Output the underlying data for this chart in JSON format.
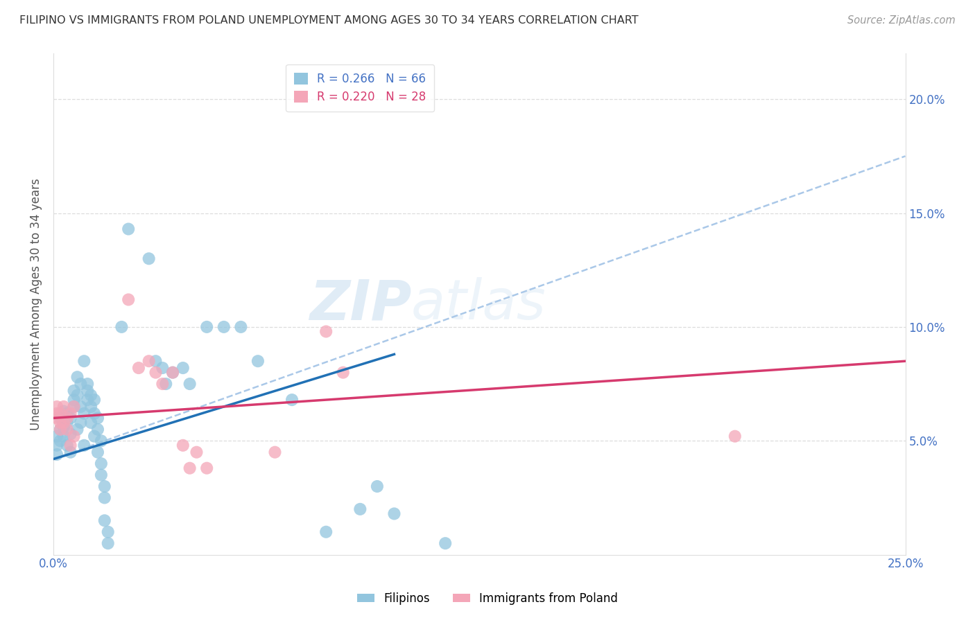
{
  "title": "FILIPINO VS IMMIGRANTS FROM POLAND UNEMPLOYMENT AMONG AGES 30 TO 34 YEARS CORRELATION CHART",
  "source": "Source: ZipAtlas.com",
  "ylabel": "Unemployment Among Ages 30 to 34 years",
  "xlim": [
    0.0,
    0.25
  ],
  "ylim": [
    0.0,
    0.22
  ],
  "yticks": [
    0.05,
    0.1,
    0.15,
    0.2
  ],
  "yticklabels": [
    "5.0%",
    "10.0%",
    "15.0%",
    "20.0%"
  ],
  "xtick_vals": [
    0.0,
    0.05,
    0.1,
    0.15,
    0.2,
    0.25
  ],
  "xticklabels": [
    "0.0%",
    "",
    "",
    "",
    "",
    "25.0%"
  ],
  "filipino_color": "#92c5de",
  "poland_color": "#f4a6b8",
  "trendline_filipino_color": "#2171b5",
  "trendline_poland_color": "#d63a6e",
  "trendline_dashed_color": "#aac8e8",
  "watermark": "ZIPatlas",
  "tick_color": "#4472c4",
  "title_color": "#333333",
  "ylabel_color": "#555555",
  "grid_color": "#dddddd",
  "legend_box_color": "#dddddd",
  "source_color": "#999999",
  "filipino_R": "0.266",
  "filipino_N": "66",
  "poland_R": "0.220",
  "poland_N": "28",
  "trendline_fil_x0": 0.0,
  "trendline_fil_y0": 0.042,
  "trendline_fil_x1": 0.1,
  "trendline_fil_y1": 0.088,
  "trendline_pol_x0": 0.0,
  "trendline_pol_y0": 0.06,
  "trendline_pol_x1": 0.25,
  "trendline_pol_y1": 0.085,
  "trendline_dash_x0": 0.0,
  "trendline_dash_y0": 0.042,
  "trendline_dash_x1": 0.25,
  "trendline_dash_y1": 0.175,
  "filipino_points": [
    [
      0.001,
      0.048
    ],
    [
      0.001,
      0.052
    ],
    [
      0.001,
      0.044
    ],
    [
      0.002,
      0.05
    ],
    [
      0.002,
      0.055
    ],
    [
      0.002,
      0.06
    ],
    [
      0.003,
      0.063
    ],
    [
      0.003,
      0.052
    ],
    [
      0.003,
      0.056
    ],
    [
      0.004,
      0.058
    ],
    [
      0.004,
      0.062
    ],
    [
      0.004,
      0.048
    ],
    [
      0.005,
      0.053
    ],
    [
      0.005,
      0.045
    ],
    [
      0.005,
      0.06
    ],
    [
      0.006,
      0.065
    ],
    [
      0.006,
      0.068
    ],
    [
      0.006,
      0.072
    ],
    [
      0.007,
      0.078
    ],
    [
      0.007,
      0.055
    ],
    [
      0.007,
      0.07
    ],
    [
      0.008,
      0.065
    ],
    [
      0.008,
      0.075
    ],
    [
      0.008,
      0.058
    ],
    [
      0.009,
      0.048
    ],
    [
      0.009,
      0.062
    ],
    [
      0.009,
      0.085
    ],
    [
      0.01,
      0.068
    ],
    [
      0.01,
      0.072
    ],
    [
      0.01,
      0.075
    ],
    [
      0.011,
      0.058
    ],
    [
      0.011,
      0.065
    ],
    [
      0.011,
      0.07
    ],
    [
      0.012,
      0.062
    ],
    [
      0.012,
      0.068
    ],
    [
      0.012,
      0.052
    ],
    [
      0.013,
      0.055
    ],
    [
      0.013,
      0.06
    ],
    [
      0.013,
      0.045
    ],
    [
      0.014,
      0.05
    ],
    [
      0.014,
      0.04
    ],
    [
      0.014,
      0.035
    ],
    [
      0.015,
      0.03
    ],
    [
      0.015,
      0.025
    ],
    [
      0.015,
      0.015
    ],
    [
      0.016,
      0.01
    ],
    [
      0.016,
      0.005
    ],
    [
      0.02,
      0.1
    ],
    [
      0.022,
      0.143
    ],
    [
      0.028,
      0.13
    ],
    [
      0.03,
      0.085
    ],
    [
      0.032,
      0.082
    ],
    [
      0.033,
      0.075
    ],
    [
      0.035,
      0.08
    ],
    [
      0.038,
      0.082
    ],
    [
      0.04,
      0.075
    ],
    [
      0.045,
      0.1
    ],
    [
      0.05,
      0.1
    ],
    [
      0.055,
      0.1
    ],
    [
      0.06,
      0.085
    ],
    [
      0.07,
      0.068
    ],
    [
      0.08,
      0.01
    ],
    [
      0.09,
      0.02
    ],
    [
      0.095,
      0.03
    ],
    [
      0.1,
      0.018
    ],
    [
      0.115,
      0.005
    ]
  ],
  "poland_points": [
    [
      0.001,
      0.06
    ],
    [
      0.001,
      0.062
    ],
    [
      0.001,
      0.065
    ],
    [
      0.002,
      0.058
    ],
    [
      0.002,
      0.055
    ],
    [
      0.002,
      0.062
    ],
    [
      0.003,
      0.065
    ],
    [
      0.003,
      0.058
    ],
    [
      0.004,
      0.06
    ],
    [
      0.004,
      0.055
    ],
    [
      0.005,
      0.062
    ],
    [
      0.005,
      0.048
    ],
    [
      0.006,
      0.052
    ],
    [
      0.006,
      0.065
    ],
    [
      0.022,
      0.112
    ],
    [
      0.025,
      0.082
    ],
    [
      0.028,
      0.085
    ],
    [
      0.03,
      0.08
    ],
    [
      0.032,
      0.075
    ],
    [
      0.035,
      0.08
    ],
    [
      0.038,
      0.048
    ],
    [
      0.04,
      0.038
    ],
    [
      0.042,
      0.045
    ],
    [
      0.045,
      0.038
    ],
    [
      0.065,
      0.045
    ],
    [
      0.08,
      0.098
    ],
    [
      0.085,
      0.08
    ],
    [
      0.2,
      0.052
    ]
  ]
}
